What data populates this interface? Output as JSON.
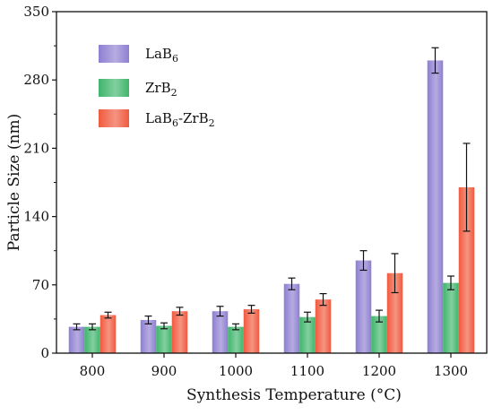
{
  "chart_data": {
    "type": "bar",
    "title": "",
    "xlabel": "Synthesis Temperature (°C)",
    "ylabel": "Particle Size (nm)",
    "categories": [
      "800",
      "900",
      "1000",
      "1100",
      "1200",
      "1300"
    ],
    "ylim": [
      0,
      350
    ],
    "yticks": [
      "0",
      "70",
      "140",
      "210",
      "280",
      "350"
    ],
    "grid": false,
    "legend": "top-left",
    "series": [
      {
        "name": "LaB6",
        "label_base": "LaB",
        "label_sub": "6",
        "color": "#8e7fd1",
        "values": [
          27,
          34,
          43,
          71,
          95,
          300
        ],
        "errors": [
          3,
          4,
          5,
          6,
          10,
          13
        ]
      },
      {
        "name": "ZrB2",
        "label_base": "ZrB",
        "label_sub": "2",
        "color": "#3fb56b",
        "values": [
          27,
          28,
          27,
          37,
          38,
          72
        ],
        "errors": [
          3,
          3,
          3,
          5,
          6,
          7
        ]
      },
      {
        "name": "LaB6-ZrB2",
        "label_base": "LaB",
        "label_sub": "6",
        "label_mid": "-ZrB",
        "label_sub2": "2",
        "color": "#f05a3e",
        "values": [
          39,
          43,
          45,
          55,
          82,
          170
        ],
        "errors": [
          3,
          4,
          4,
          6,
          20,
          45
        ]
      }
    ]
  }
}
